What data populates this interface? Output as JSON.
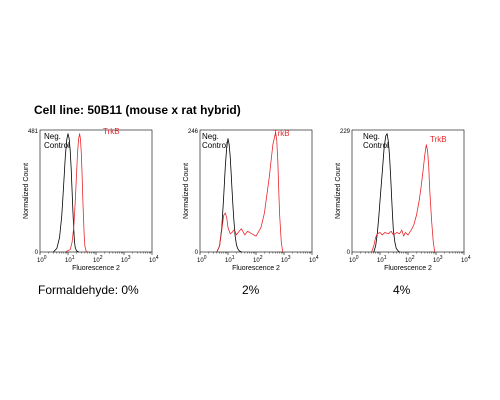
{
  "title": "Cell line: 50B11 (mouse x rat hybrid)",
  "conditions": [
    "Formaldehyde: 0%",
    "2%",
    "4%"
  ],
  "colors": {
    "control": "#000000",
    "target": "#e8262b"
  },
  "chart_data": [
    {
      "type": "line",
      "xlabel": "Fluorescence 2",
      "ylabel": "Normalized Count",
      "x_scale": "log",
      "xlim": [
        1,
        10000
      ],
      "ylim": [
        0,
        481
      ],
      "ymax_label": "481",
      "ymin_label": "0",
      "x_ticks": [
        {
          "base": "10",
          "exp": "0"
        },
        {
          "base": "10",
          "exp": "1"
        },
        {
          "base": "10",
          "exp": "2"
        },
        {
          "base": "10",
          "exp": "3"
        },
        {
          "base": "10",
          "exp": "4"
        }
      ],
      "series": [
        {
          "name": "Neg. Control",
          "label_lines": [
            "Neg.",
            "Control"
          ],
          "color": "#000000",
          "x": [
            3,
            4,
            5,
            6,
            7,
            8,
            9,
            10,
            11,
            12,
            13,
            14,
            15,
            16,
            17,
            18,
            20,
            24
          ],
          "y": [
            0,
            0.03,
            0.12,
            0.3,
            0.55,
            0.78,
            0.92,
            0.97,
            0.93,
            0.83,
            0.68,
            0.5,
            0.33,
            0.19,
            0.09,
            0.04,
            0.01,
            0
          ]
        },
        {
          "name": "TrkB",
          "label_lines": [
            "TrkB"
          ],
          "color": "#e8262b",
          "x": [
            8,
            12,
            14,
            16,
            18,
            20,
            22,
            24,
            26,
            28,
            30,
            32,
            34,
            36,
            38,
            40,
            44,
            50
          ],
          "y": [
            0,
            0.02,
            0.08,
            0.2,
            0.4,
            0.62,
            0.82,
            0.93,
            0.97,
            0.92,
            0.8,
            0.62,
            0.42,
            0.26,
            0.13,
            0.05,
            0.01,
            0
          ]
        }
      ]
    },
    {
      "type": "line",
      "xlabel": "Fluorescence 2",
      "ylabel": "Normalized Count",
      "x_scale": "log",
      "xlim": [
        1,
        10000
      ],
      "ylim": [
        0,
        246
      ],
      "ymax_label": "246",
      "ymin_label": "0",
      "x_ticks": [
        {
          "base": "10",
          "exp": "0"
        },
        {
          "base": "10",
          "exp": "1"
        },
        {
          "base": "10",
          "exp": "2"
        },
        {
          "base": "10",
          "exp": "3"
        },
        {
          "base": "10",
          "exp": "4"
        }
      ],
      "series": [
        {
          "name": "Neg. Control",
          "label_lines": [
            "Neg.",
            "Control"
          ],
          "color": "#000000",
          "x": [
            4,
            5,
            6,
            7,
            8,
            9,
            10,
            11,
            12,
            13,
            14,
            15,
            16,
            17,
            18,
            20,
            22,
            25,
            30
          ],
          "y": [
            0,
            0.05,
            0.2,
            0.45,
            0.7,
            0.86,
            0.93,
            0.88,
            0.78,
            0.64,
            0.5,
            0.38,
            0.28,
            0.2,
            0.13,
            0.06,
            0.03,
            0.01,
            0
          ]
        },
        {
          "name": "TrkB",
          "label_lines": [
            "TrkB"
          ],
          "color": "#e8262b",
          "x": [
            4,
            5,
            6,
            7,
            8,
            9,
            10,
            12,
            14,
            16,
            18,
            20,
            25,
            30,
            40,
            50,
            70,
            100,
            150,
            200,
            300,
            400,
            500,
            550,
            600,
            650,
            700,
            800,
            900
          ],
          "y": [
            0,
            0.05,
            0.18,
            0.3,
            0.32,
            0.28,
            0.2,
            0.15,
            0.16,
            0.18,
            0.17,
            0.14,
            0.17,
            0.19,
            0.14,
            0.17,
            0.15,
            0.13,
            0.2,
            0.32,
            0.62,
            0.88,
            0.98,
            0.92,
            0.75,
            0.5,
            0.3,
            0.08,
            0
          ]
        }
      ]
    },
    {
      "type": "line",
      "xlabel": "Fluorescence 2",
      "ylabel": "Normalized Count",
      "x_scale": "log",
      "xlim": [
        1,
        10000
      ],
      "ylim": [
        0,
        229
      ],
      "ymax_label": "229",
      "ymin_label": "0",
      "x_ticks": [
        {
          "base": "10",
          "exp": "0"
        },
        {
          "base": "10",
          "exp": "1"
        },
        {
          "base": "10",
          "exp": "2"
        },
        {
          "base": "10",
          "exp": "3"
        },
        {
          "base": "10",
          "exp": "4"
        }
      ],
      "series": [
        {
          "name": "Neg. Control",
          "label_lines": [
            "Neg.",
            "Control"
          ],
          "color": "#000000",
          "x": [
            6,
            7,
            8,
            9,
            10,
            12,
            14,
            16,
            18,
            20,
            22,
            24,
            26,
            28,
            30,
            34,
            38,
            44,
            50
          ],
          "y": [
            0,
            0.05,
            0.15,
            0.28,
            0.42,
            0.65,
            0.85,
            0.95,
            0.97,
            0.9,
            0.78,
            0.62,
            0.45,
            0.3,
            0.18,
            0.08,
            0.03,
            0.01,
            0
          ]
        },
        {
          "name": "TrkB",
          "label_lines": [
            "TrkB"
          ],
          "color": "#e8262b",
          "x": [
            5,
            6,
            7,
            8,
            10,
            12,
            15,
            20,
            25,
            30,
            40,
            50,
            60,
            70,
            80,
            100,
            130,
            160,
            200,
            250,
            300,
            350,
            400,
            450,
            500,
            550,
            600,
            700,
            800,
            900
          ],
          "y": [
            0,
            0.05,
            0.12,
            0.15,
            0.16,
            0.14,
            0.16,
            0.15,
            0.17,
            0.14,
            0.16,
            0.15,
            0.18,
            0.13,
            0.16,
            0.14,
            0.18,
            0.22,
            0.3,
            0.42,
            0.55,
            0.68,
            0.8,
            0.88,
            0.83,
            0.7,
            0.5,
            0.25,
            0.08,
            0
          ]
        }
      ]
    }
  ]
}
